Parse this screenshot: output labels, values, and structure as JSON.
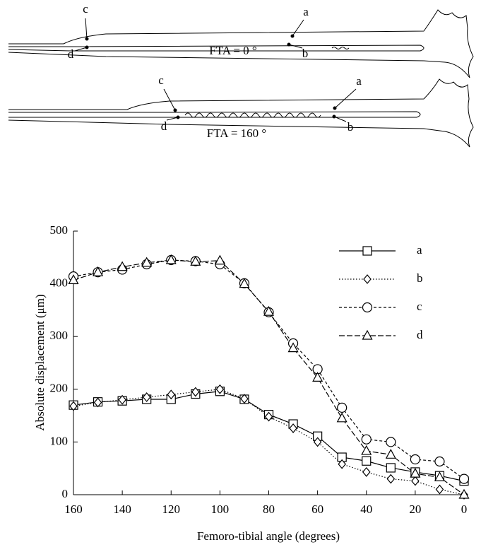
{
  "diagram": {
    "panels": [
      {
        "caption": "FTA = 0 °",
        "labels": [
          "a",
          "b",
          "c",
          "d"
        ]
      },
      {
        "caption": "FTA = 160 °",
        "labels": [
          "a",
          "b",
          "c",
          "d"
        ]
      }
    ]
  },
  "chart_data": {
    "type": "line",
    "x_label": "Femoro-tibial angle (degrees)",
    "y_label": "Absolute displacement (μm)",
    "x": [
      160,
      150,
      140,
      130,
      120,
      110,
      100,
      90,
      80,
      70,
      60,
      50,
      40,
      30,
      20,
      10,
      0
    ],
    "xlim": [
      160,
      0
    ],
    "xticks": [
      160,
      140,
      120,
      100,
      80,
      60,
      40,
      20,
      0
    ],
    "ylim": [
      0,
      500
    ],
    "yticks": [
      0,
      100,
      200,
      300,
      400,
      500
    ],
    "grid": false,
    "legend": "upper right",
    "series": [
      {
        "name": "a",
        "color": "#000000",
        "marker": "square",
        "dash": "solid",
        "values": [
          170,
          176,
          178,
          181,
          181,
          191,
          196,
          181,
          152,
          134,
          111,
          71,
          64,
          51,
          43,
          36,
          26
        ]
      },
      {
        "name": "b",
        "color": "#000000",
        "marker": "diamond",
        "dash": "dotted",
        "values": [
          168,
          175,
          180,
          185,
          190,
          195,
          200,
          182,
          148,
          126,
          100,
          58,
          43,
          30,
          26,
          10,
          0
        ]
      },
      {
        "name": "c",
        "color": "#000000",
        "marker": "circle",
        "dash": "short-dash",
        "values": [
          414,
          422,
          427,
          437,
          445,
          443,
          437,
          401,
          346,
          287,
          238,
          165,
          105,
          100,
          67,
          63,
          30
        ]
      },
      {
        "name": "d",
        "color": "#000000",
        "marker": "triangle",
        "dash": "long-dash",
        "values": [
          407,
          422,
          432,
          440,
          445,
          442,
          444,
          400,
          347,
          278,
          222,
          145,
          83,
          76,
          40,
          33,
          0
        ]
      }
    ]
  }
}
